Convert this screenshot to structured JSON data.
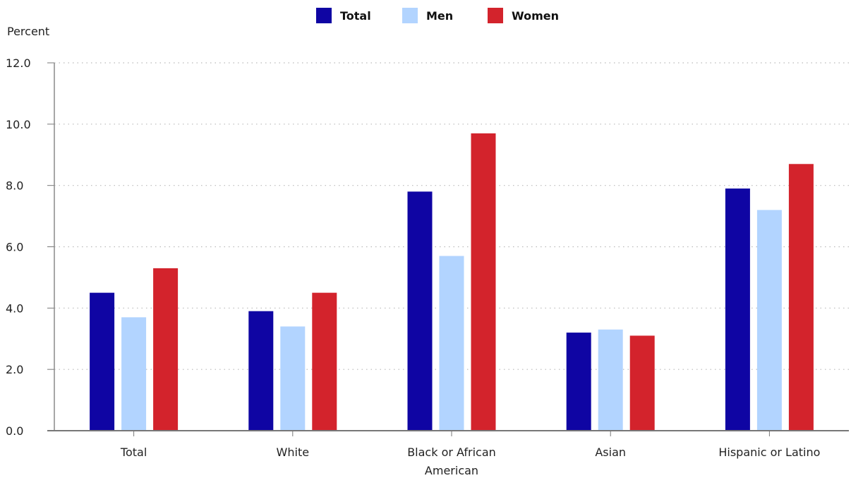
{
  "chart_data": {
    "type": "bar",
    "ylabel": "Percent",
    "xlabel": "",
    "ylim": [
      0,
      12
    ],
    "yticks": [
      "0.0",
      "2.0",
      "4.0",
      "6.0",
      "8.0",
      "10.0",
      "12.0"
    ],
    "grid": true,
    "legend_position": "top-center",
    "categories": [
      [
        "Total"
      ],
      [
        "White"
      ],
      [
        "Black or African",
        "American"
      ],
      [
        "Asian"
      ],
      [
        "Hispanic or Latino"
      ]
    ],
    "series": [
      {
        "name": "Total",
        "color": "#0f05a3",
        "values": [
          4.5,
          3.9,
          7.8,
          3.2,
          7.9
        ]
      },
      {
        "name": "Men",
        "color": "#b2d4ff",
        "values": [
          3.7,
          3.4,
          5.7,
          3.3,
          7.2
        ]
      },
      {
        "name": "Women",
        "color": "#d3232c",
        "values": [
          5.3,
          4.5,
          9.7,
          3.1,
          8.7
        ]
      }
    ]
  }
}
